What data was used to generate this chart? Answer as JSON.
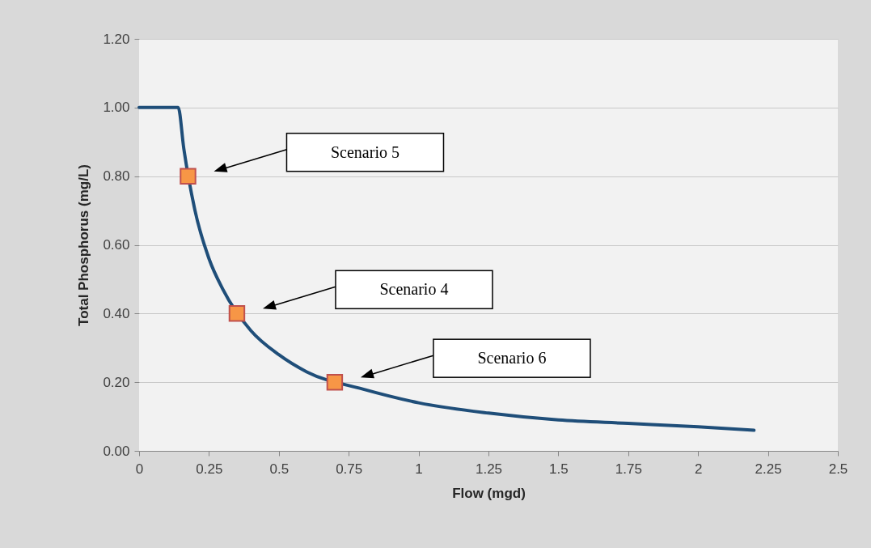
{
  "chart_data": {
    "type": "line",
    "xlabel": "Flow (mgd)",
    "ylabel": "Total Phosphorus (mg/L)",
    "xlim": [
      0,
      2.5
    ],
    "xticks": [
      0,
      0.25,
      0.5,
      0.75,
      1,
      1.25,
      1.5,
      1.75,
      2,
      2.25,
      2.5
    ],
    "ylim": [
      0,
      1.2
    ],
    "yticks": [
      {
        "value": 0,
        "label": "0.00"
      },
      {
        "value": 0.2,
        "label": "0.20"
      },
      {
        "value": 0.4,
        "label": "0.40"
      },
      {
        "value": 0.6,
        "label": "0.60"
      },
      {
        "value": 0.8,
        "label": "0.80"
      },
      {
        "value": 1,
        "label": "1.00"
      },
      {
        "value": 1.2,
        "label": "1.20"
      }
    ],
    "series": [
      {
        "color": "#1f4e79",
        "marker": "none",
        "line_style": "solid",
        "x": [
          0,
          0.14,
          0.16,
          0.2,
          0.25,
          0.3,
          0.4,
          0.5,
          0.6,
          0.8,
          1,
          1.25,
          1.5,
          1.75,
          2,
          2.2
        ],
        "values": [
          1,
          1,
          0.88,
          0.7,
          0.56,
          0.47,
          0.35,
          0.28,
          0.23,
          0.18,
          0.14,
          0.11,
          0.09,
          0.08,
          0.07,
          0.06
        ]
      },
      {
        "type": "scatter",
        "color": "#f79646",
        "marker": "square",
        "x": [
          0.175,
          0.35,
          0.7
        ],
        "values": [
          0.8,
          0.4,
          0.2
        ]
      }
    ],
    "annotations": [
      "Scenario 5",
      "Scenario 4",
      "Scenario 6"
    ],
    "grid": "y"
  }
}
